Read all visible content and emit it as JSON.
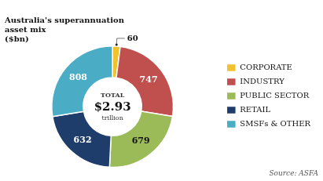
{
  "chart_data": {
    "type": "doughnut",
    "title": [
      "Australia's superannuation",
      "asset mix",
      "($bn)"
    ],
    "subtitle": "Source: ASFA",
    "annotations": [
      "TOTAL",
      "$2.93",
      "trillion"
    ],
    "categories": [
      "CORPORATE",
      "INDUSTRY",
      "PUBLIC SECTOR",
      "RETAIL",
      "SMSFs & OTHER"
    ],
    "values": [
      60,
      747,
      679,
      632,
      808
    ],
    "colors": [
      "#F2C12E",
      "#C0504D",
      "#9BBB59",
      "#1F3D6B",
      "#4BACC6"
    ],
    "legend": "right",
    "data_labels": true
  }
}
